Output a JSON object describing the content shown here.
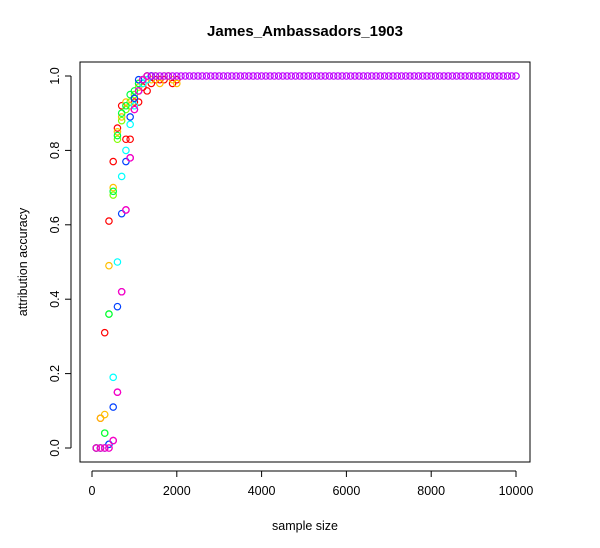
{
  "chart_data": {
    "type": "scatter",
    "title": "James_Ambassadors_1903",
    "xlabel": "sample size",
    "ylabel": "attribution accuracy",
    "xlim": [
      0,
      10000
    ],
    "ylim": [
      0,
      1
    ],
    "x_ticks": [
      0,
      2000,
      4000,
      6000,
      8000,
      10000
    ],
    "x_tick_labels": [
      "0",
      "2000",
      "4000",
      "6000",
      "8000",
      "10000"
    ],
    "y_ticks": [
      0.0,
      0.2,
      0.4,
      0.6,
      0.8,
      1.0
    ],
    "y_tick_labels": [
      "0.0",
      "0.2",
      "0.4",
      "0.6",
      "0.8",
      "1.0"
    ],
    "grid": false,
    "legend": "none",
    "marker": "open-circle",
    "series": [
      {
        "color": "#FF0000",
        "x": [
          100,
          200,
          300,
          400,
          500,
          600,
          700,
          800,
          900,
          1000,
          1100,
          1200,
          1300,
          1400,
          1500,
          1600,
          1700,
          1800,
          1900,
          2000
        ],
        "y": [
          0.0,
          0.08,
          0.31,
          0.61,
          0.77,
          0.86,
          0.92,
          0.83,
          0.83,
          0.93,
          0.93,
          0.97,
          0.96,
          0.98,
          0.99,
          0.99,
          0.99,
          1.0,
          0.98,
          0.99
        ]
      },
      {
        "color": "#FFBF00",
        "x": [
          100,
          200,
          300,
          400,
          500,
          600,
          700,
          800,
          900,
          1000,
          1100,
          1200,
          1300,
          1400,
          1500,
          1600,
          1700,
          1800,
          1900,
          2000
        ],
        "y": [
          0.0,
          0.08,
          0.09,
          0.49,
          0.7,
          0.85,
          0.89,
          0.93,
          0.92,
          0.94,
          0.97,
          0.98,
          0.99,
          0.99,
          1.0,
          0.98,
          1.0,
          1.0,
          0.99,
          0.98
        ]
      },
      {
        "color": "#80FF00",
        "x": [
          100,
          200,
          300,
          400,
          500,
          600,
          700,
          800,
          900,
          1000,
          1100,
          1200,
          1300,
          1400,
          1500
        ],
        "y": [
          0.0,
          0.0,
          0.04,
          0.36,
          0.68,
          0.83,
          0.88,
          0.91,
          0.93,
          0.95,
          0.98,
          0.99,
          1.0,
          1.0,
          1.0
        ]
      },
      {
        "color": "#00FF40",
        "x": [
          100,
          200,
          300,
          400,
          500,
          600,
          700,
          800,
          900,
          1000,
          1100,
          1200,
          1300,
          1400
        ],
        "y": [
          0.0,
          0.0,
          0.04,
          0.36,
          0.69,
          0.84,
          0.9,
          0.92,
          0.95,
          0.96,
          0.98,
          0.99,
          1.0,
          1.0
        ]
      },
      {
        "color": "#00FFFF",
        "x": [
          100,
          200,
          300,
          400,
          500,
          600,
          700,
          800,
          900,
          1000,
          1100,
          1200,
          1300,
          1400
        ],
        "y": [
          0.0,
          0.0,
          0.0,
          0.01,
          0.19,
          0.5,
          0.73,
          0.8,
          0.87,
          0.92,
          0.96,
          0.98,
          0.99,
          1.0
        ]
      },
      {
        "color": "#0040FF",
        "x": [
          100,
          200,
          300,
          400,
          500,
          600,
          700,
          800,
          900,
          1000,
          1100,
          1200,
          1300,
          1400
        ],
        "y": [
          0.0,
          0.0,
          0.0,
          0.01,
          0.11,
          0.38,
          0.63,
          0.77,
          0.89,
          0.94,
          0.99,
          0.99,
          1.0,
          1.0
        ]
      },
      {
        "color": "#8000FF",
        "x": [
          100,
          200,
          300,
          400,
          500,
          600,
          700,
          800,
          900,
          1000,
          1100,
          1200,
          1300,
          1400
        ],
        "y": [
          0.0,
          0.0,
          0.0,
          0.0,
          0.02,
          0.15,
          0.42,
          0.64,
          0.78,
          0.91,
          0.96,
          0.99,
          1.0,
          1.0
        ]
      },
      {
        "color": "#FF00BF",
        "x": [
          100,
          200,
          300,
          400,
          500,
          600,
          700,
          800,
          900,
          1000,
          1100,
          1200,
          1300
        ],
        "y": [
          0.0,
          0.0,
          0.0,
          0.0,
          0.02,
          0.15,
          0.42,
          0.64,
          0.78,
          0.91,
          0.96,
          0.99,
          1.0
        ]
      },
      {
        "color": "#BF00FF",
        "x": [
          1400,
          1500,
          1600,
          1700,
          1800,
          1900,
          2000,
          2100,
          2200,
          2300,
          2400,
          2500,
          2600,
          2700,
          2800,
          2900,
          3000,
          3100,
          3200,
          3300,
          3400,
          3500,
          3600,
          3700,
          3800,
          3900,
          4000,
          4100,
          4200,
          4300,
          4400,
          4500,
          4600,
          4700,
          4800,
          4900,
          5000,
          5100,
          5200,
          5300,
          5400,
          5500,
          5600,
          5700,
          5800,
          5900,
          6000,
          6100,
          6200,
          6300,
          6400,
          6500,
          6600,
          6700,
          6800,
          6900,
          7000,
          7100,
          7200,
          7300,
          7400,
          7500,
          7600,
          7700,
          7800,
          7900,
          8000,
          8100,
          8200,
          8300,
          8400,
          8500,
          8600,
          8700,
          8800,
          8900,
          9000,
          9100,
          9200,
          9300,
          9400,
          9500,
          9600,
          9700,
          9800,
          9900,
          10000
        ],
        "y": [
          1.0,
          1.0,
          1.0,
          1.0,
          1.0,
          1.0,
          1.0,
          1.0,
          1.0,
          1.0,
          1.0,
          1.0,
          1.0,
          1.0,
          1.0,
          1.0,
          1.0,
          1.0,
          1.0,
          1.0,
          1.0,
          1.0,
          1.0,
          1.0,
          1.0,
          1.0,
          1.0,
          1.0,
          1.0,
          1.0,
          1.0,
          1.0,
          1.0,
          1.0,
          1.0,
          1.0,
          1.0,
          1.0,
          1.0,
          1.0,
          1.0,
          1.0,
          1.0,
          1.0,
          1.0,
          1.0,
          1.0,
          1.0,
          1.0,
          1.0,
          1.0,
          1.0,
          1.0,
          1.0,
          1.0,
          1.0,
          1.0,
          1.0,
          1.0,
          1.0,
          1.0,
          1.0,
          1.0,
          1.0,
          1.0,
          1.0,
          1.0,
          1.0,
          1.0,
          1.0,
          1.0,
          1.0,
          1.0,
          1.0,
          1.0,
          1.0,
          1.0,
          1.0,
          1.0,
          1.0,
          1.0,
          1.0,
          1.0,
          1.0,
          1.0,
          1.0,
          1.0
        ]
      }
    ]
  }
}
